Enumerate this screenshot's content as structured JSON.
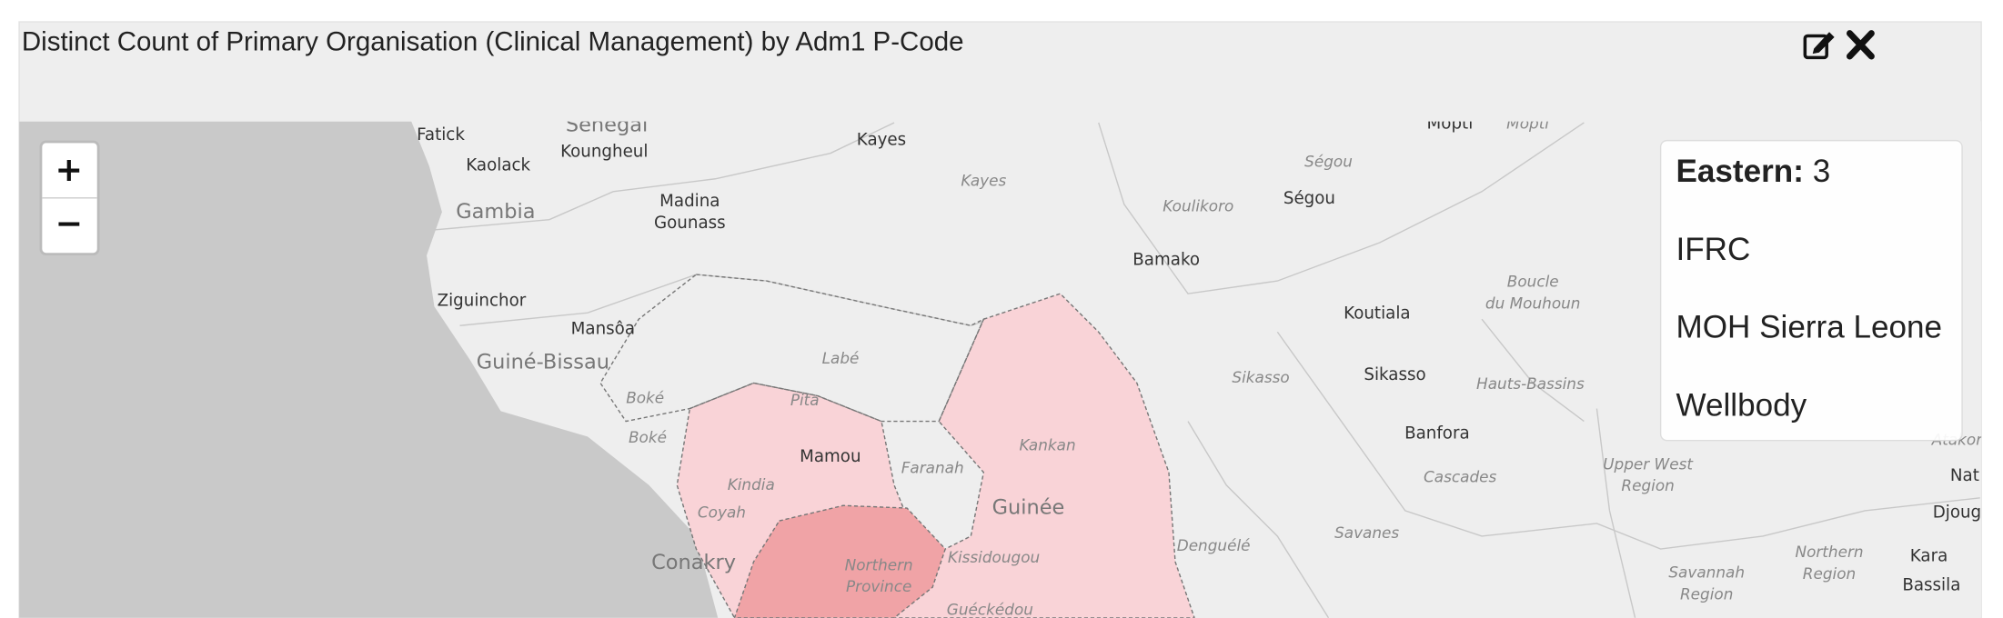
{
  "header": {
    "title": "Distinct Count of Primary Organisation (Clinical Management) by Adm1 P-Code"
  },
  "zoom": {
    "in": "+",
    "out": "−"
  },
  "tooltip": {
    "region": "Eastern:",
    "value": 3,
    "items": [
      "IFRC",
      "MOH Sierra Leone",
      "Wellbody"
    ]
  },
  "map": {
    "labels": [
      "Fatick",
      "Senegal",
      "Kayes",
      "Kaolack",
      "Koungheul",
      "Kayes",
      "Mopti",
      "Mopti",
      "Ségou",
      "Ségou",
      "Koulikoro",
      "Gambia",
      "Madina",
      "Gounass",
      "Bamako",
      "Ziguinchor",
      "Mansôa",
      "Boucle",
      "du Mouhoun",
      "Koutiala",
      "Guiné-Bissau",
      "Labé",
      "Sikasso",
      "Sikasso",
      "Hauts-Bassins",
      "Boké",
      "Pita",
      "Boké",
      "Kankan",
      "Mamou",
      "Faranah",
      "Banfora",
      "Cascades",
      "Upper West",
      "Region",
      "Kindia",
      "Guinée",
      "Coyah",
      "Savanes",
      "Denguélé",
      "Conakry",
      "Kissidougou",
      "Northern",
      "Province",
      "Northern",
      "Region",
      "Savannah",
      "Region",
      "Kara",
      "Bassila",
      "Guéckédou",
      "Djoug",
      "Nat",
      "Atakor"
    ]
  }
}
